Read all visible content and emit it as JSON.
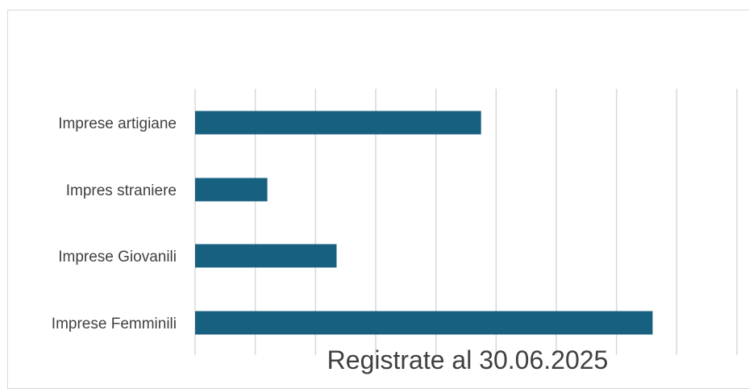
{
  "chart_data": {
    "type": "bar",
    "orientation": "horizontal",
    "categories": [
      "Impresе artigiane",
      "Impres straniere",
      "Imprese Giovanili",
      "Imprese Femminili"
    ],
    "values": [
      4.75,
      1.2,
      2.35,
      7.6
    ],
    "xlabel": "Registrate al 30.06.2025",
    "ylabel": "",
    "xlim": [
      0,
      9
    ],
    "grid": true,
    "legend": "none",
    "bar_color": "#17607f",
    "gridline_color": "#d9d9d9"
  }
}
